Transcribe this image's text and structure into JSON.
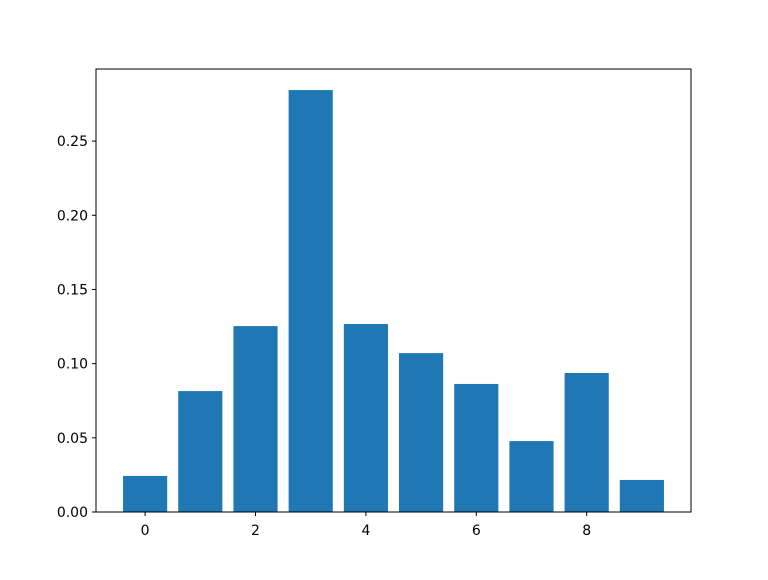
{
  "chart_data": {
    "type": "bar",
    "title": "",
    "xlabel": "",
    "ylabel": "",
    "categories": [
      0,
      1,
      2,
      3,
      4,
      5,
      6,
      7,
      8,
      9
    ],
    "values": [
      0.0243,
      0.0815,
      0.1253,
      0.2844,
      0.1267,
      0.1071,
      0.0863,
      0.0478,
      0.0937,
      0.0216
    ],
    "xlim": [
      -0.89,
      9.89
    ],
    "ylim": [
      0,
      0.2986
    ],
    "xticks": [
      0,
      2,
      4,
      6,
      8
    ],
    "xtick_labels": [
      "0",
      "2",
      "4",
      "6",
      "8"
    ],
    "yticks": [
      0,
      0.05,
      0.1,
      0.15,
      0.2,
      0.25
    ],
    "ytick_labels": [
      "0.00",
      "0.05",
      "0.10",
      "0.15",
      "0.20",
      "0.25"
    ],
    "bar_color": "#1f77b4",
    "grid": false,
    "legend": "none"
  }
}
